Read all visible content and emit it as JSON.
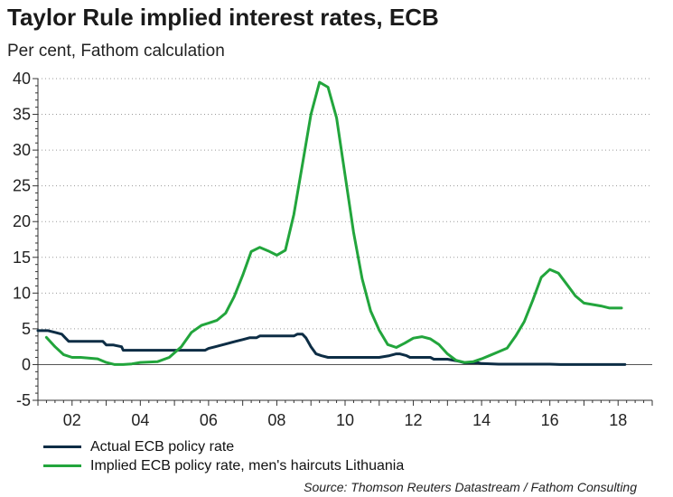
{
  "title": "Taylor Rule implied interest rates, ECB",
  "subtitle": "Per cent, Fathom calculation",
  "source": "Source: Thomson Reuters Datastream / Fathom Consulting",
  "chart_data": {
    "type": "line",
    "title": "Taylor Rule implied interest rates, ECB",
    "ylabel": "Per cent, Fathom calculation",
    "xlim": [
      2001,
      2019
    ],
    "ylim": [
      -5,
      40
    ],
    "yticks": [
      -5,
      0,
      5,
      10,
      15,
      20,
      25,
      30,
      35,
      40
    ],
    "xticks": [
      {
        "value": 2002,
        "label": "02"
      },
      {
        "value": 2004,
        "label": "04"
      },
      {
        "value": 2006,
        "label": "06"
      },
      {
        "value": 2008,
        "label": "08"
      },
      {
        "value": 2010,
        "label": "10"
      },
      {
        "value": 2012,
        "label": "12"
      },
      {
        "value": 2014,
        "label": "14"
      },
      {
        "value": 2016,
        "label": "16"
      },
      {
        "value": 2018,
        "label": "18"
      }
    ],
    "grid": "horizontal dotted",
    "legend": "bottom-left",
    "series": [
      {
        "name": "Actual ECB policy rate",
        "color": "#0d2d45",
        "x": [
          2001.0,
          2001.3,
          2001.5,
          2001.7,
          2001.8,
          2001.9,
          2002.5,
          2002.9,
          2003.0,
          2003.2,
          2003.45,
          2003.5,
          2005.0,
          2005.9,
          2006.0,
          2006.2,
          2006.4,
          2006.6,
          2006.8,
          2007.0,
          2007.2,
          2007.4,
          2007.5,
          2008.0,
          2008.5,
          2008.6,
          2008.75,
          2008.85,
          2009.0,
          2009.15,
          2009.3,
          2009.5,
          2011.0,
          2011.3,
          2011.5,
          2011.6,
          2011.8,
          2011.9,
          2012.0,
          2012.5,
          2012.6,
          2013.0,
          2013.3,
          2013.5,
          2013.9,
          2014.0,
          2014.5,
          2014.8,
          2016.0,
          2016.3,
          2018.2
        ],
        "values": [
          4.75,
          4.75,
          4.5,
          4.25,
          3.75,
          3.25,
          3.25,
          3.25,
          2.75,
          2.75,
          2.5,
          2.0,
          2.0,
          2.0,
          2.25,
          2.5,
          2.75,
          3.0,
          3.25,
          3.5,
          3.75,
          3.75,
          4.0,
          4.0,
          4.0,
          4.25,
          4.25,
          3.75,
          2.5,
          1.5,
          1.25,
          1.0,
          1.0,
          1.25,
          1.5,
          1.5,
          1.25,
          1.0,
          1.0,
          1.0,
          0.75,
          0.75,
          0.5,
          0.25,
          0.25,
          0.15,
          0.05,
          0.05,
          0.05,
          0.0,
          0.0
        ]
      },
      {
        "name": "Implied ECB policy rate, men's haircuts Lithuania",
        "color": "#22a53c",
        "x": [
          2001.25,
          2001.5,
          2001.75,
          2002.0,
          2002.25,
          2002.75,
          2003.0,
          2003.25,
          2003.5,
          2003.75,
          2004.0,
          2004.5,
          2004.85,
          2005.2,
          2005.5,
          2005.8,
          2006.0,
          2006.25,
          2006.5,
          2006.75,
          2007.0,
          2007.25,
          2007.5,
          2007.75,
          2008.0,
          2008.25,
          2008.5,
          2008.75,
          2009.0,
          2009.25,
          2009.5,
          2009.75,
          2010.0,
          2010.25,
          2010.5,
          2010.75,
          2011.0,
          2011.25,
          2011.5,
          2011.75,
          2012.0,
          2012.25,
          2012.5,
          2012.75,
          2013.0,
          2013.25,
          2013.5,
          2013.75,
          2014.0,
          2014.25,
          2014.5,
          2014.75,
          2015.0,
          2015.25,
          2015.5,
          2015.75,
          2016.0,
          2016.25,
          2016.5,
          2016.75,
          2017.0,
          2017.25,
          2017.5,
          2017.75,
          2018.0,
          2018.1
        ],
        "values": [
          3.8,
          2.5,
          1.4,
          1.0,
          1.0,
          0.8,
          0.3,
          0.0,
          0.0,
          0.1,
          0.3,
          0.4,
          1.0,
          2.5,
          4.5,
          5.5,
          5.8,
          6.2,
          7.2,
          9.5,
          12.5,
          15.8,
          16.4,
          15.9,
          15.3,
          16.0,
          21.0,
          28.0,
          35.0,
          39.5,
          38.8,
          34.5,
          26.5,
          18.5,
          12.0,
          7.5,
          4.8,
          2.8,
          2.4,
          3.0,
          3.7,
          3.9,
          3.6,
          2.8,
          1.5,
          0.6,
          0.3,
          0.4,
          0.8,
          1.3,
          1.8,
          2.3,
          4.0,
          6.0,
          9.0,
          12.2,
          13.3,
          12.8,
          11.2,
          9.6,
          8.6,
          8.4,
          8.2,
          7.9,
          7.9,
          7.9
        ]
      }
    ]
  }
}
